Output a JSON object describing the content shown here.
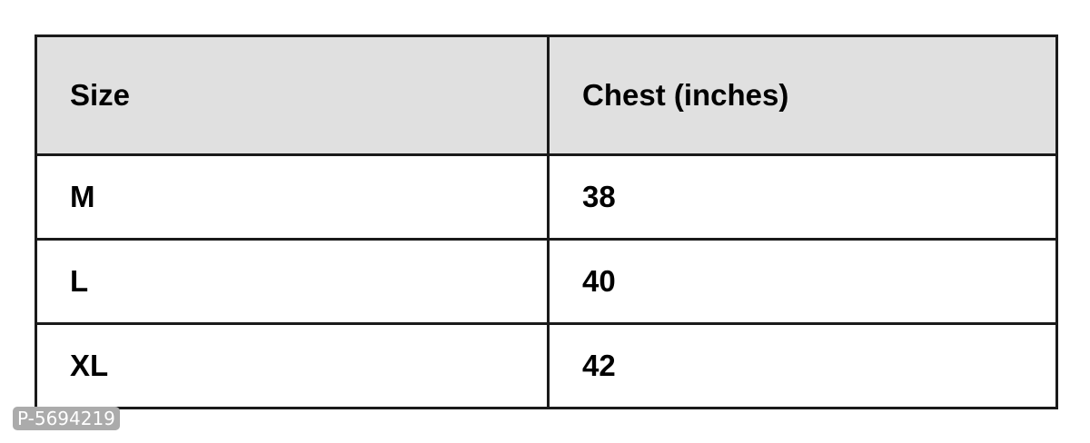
{
  "table": {
    "headers": [
      "Size",
      "Chest (inches)"
    ],
    "rows": [
      [
        "M",
        "38"
      ],
      [
        "L",
        "40"
      ],
      [
        "XL",
        "42"
      ]
    ]
  },
  "watermark": "P-5694219"
}
